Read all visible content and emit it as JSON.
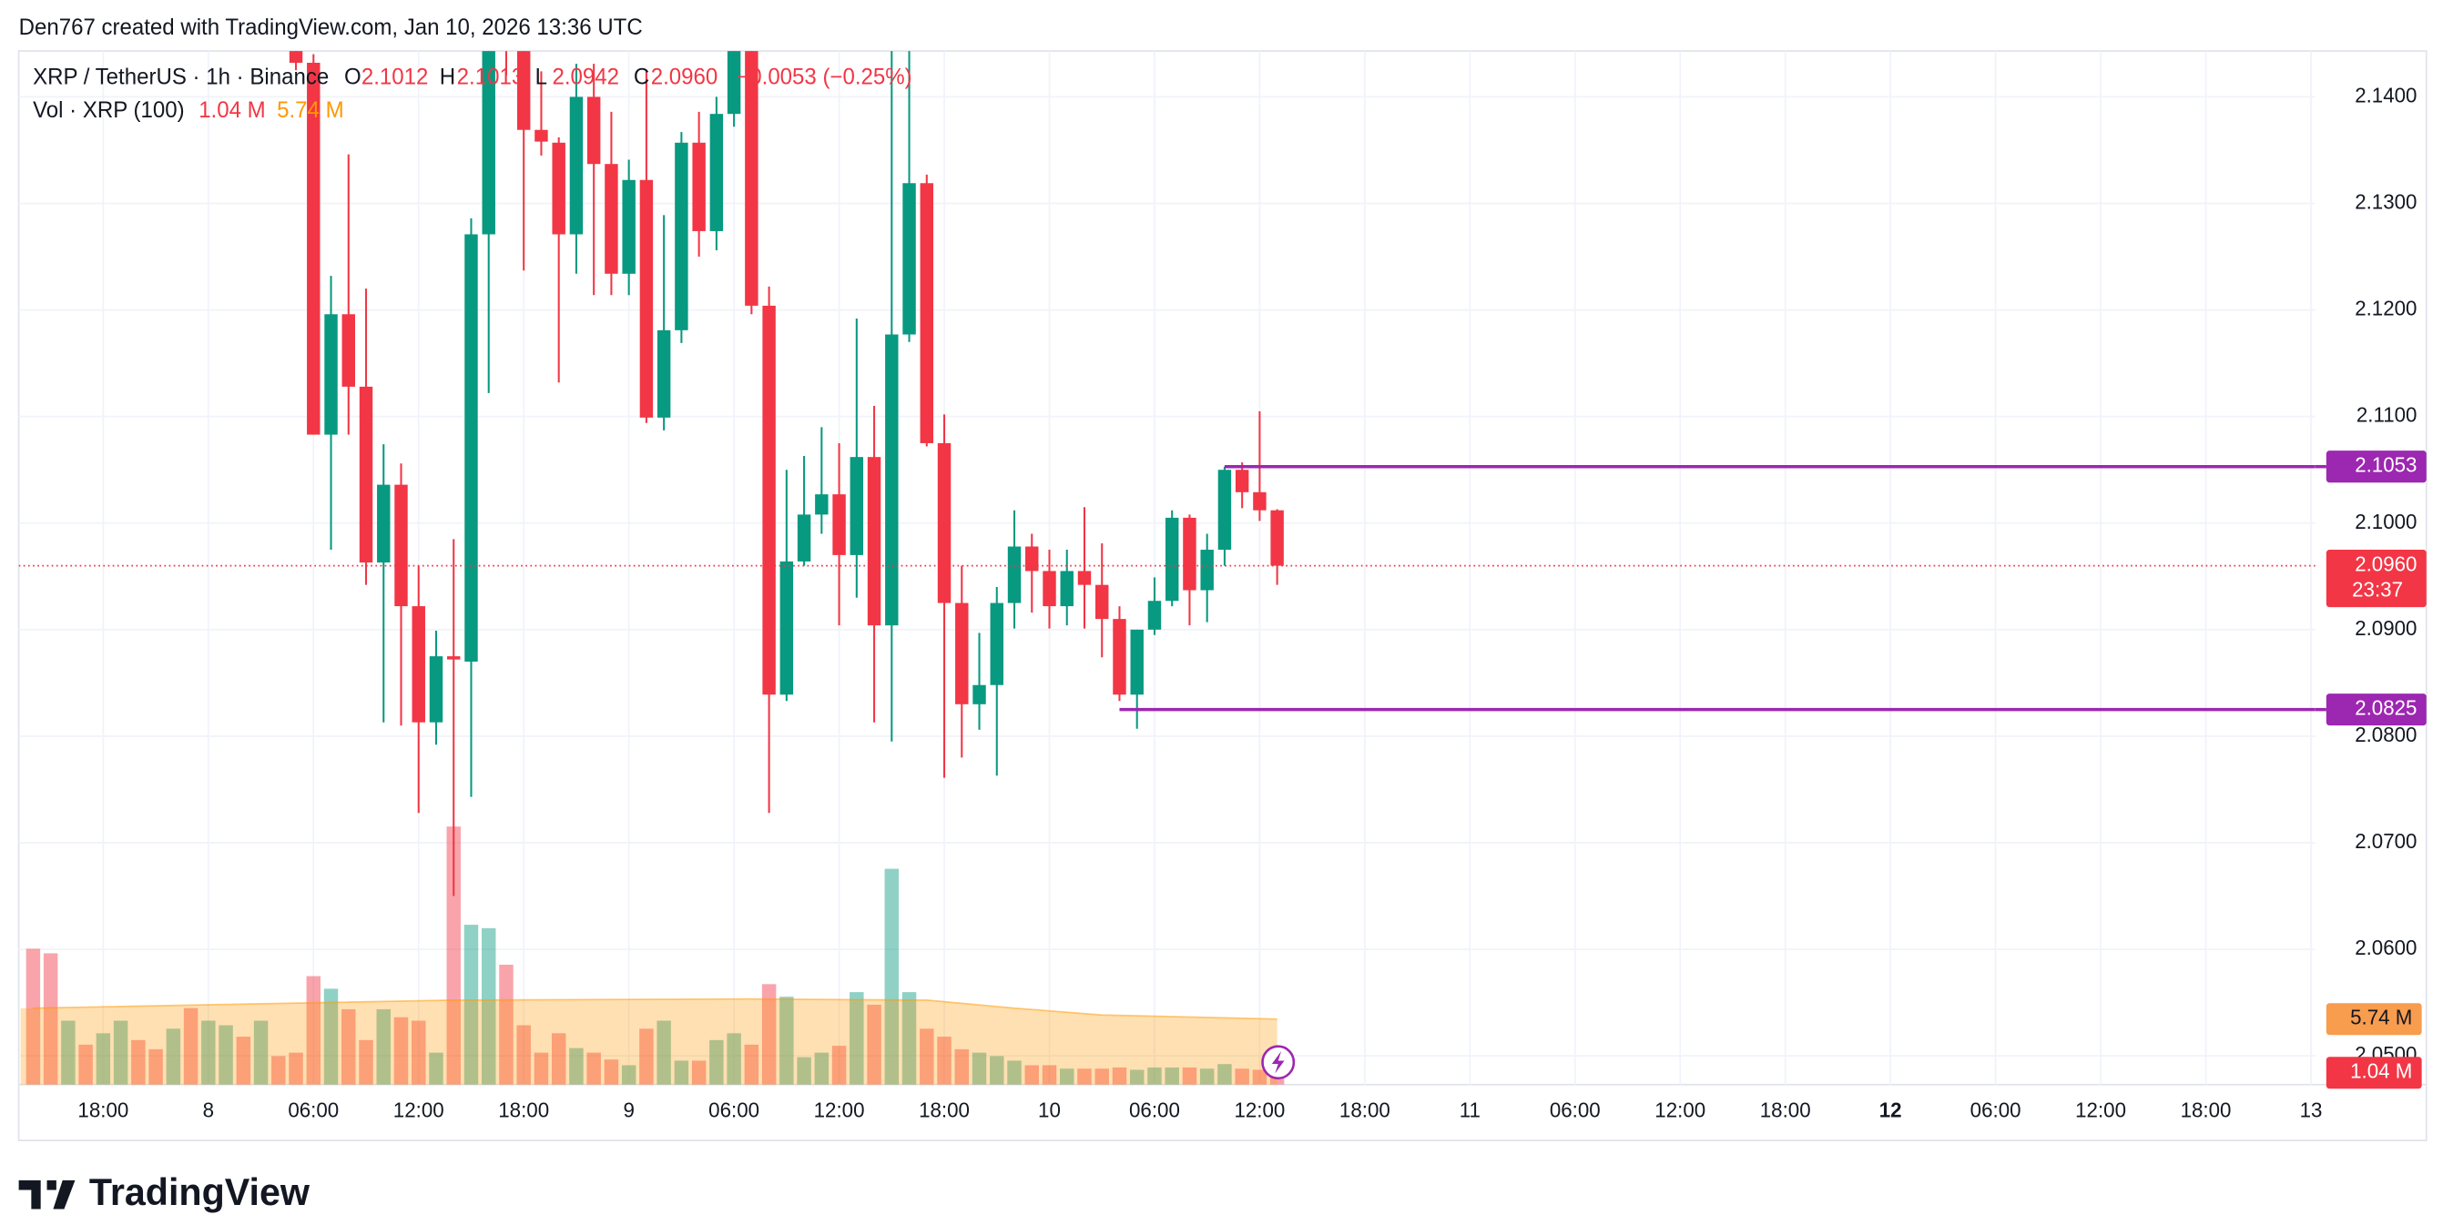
{
  "header": {
    "credit": "Den767 created with TradingView.com, Jan 10, 2026 13:36 UTC"
  },
  "chart_data": {
    "type": "candlestick",
    "title": "XRP / TetherUS · 1h · Binance",
    "ohlc_legend": [
      {
        "label": "O",
        "value": "2.1012"
      },
      {
        "label": "H",
        "value": "2.1013"
      },
      {
        "label": "L",
        "value": "2.0942"
      },
      {
        "label": "C",
        "value": "2.0960"
      }
    ],
    "change": "−0.0053 (−0.25%)",
    "up_color": "#089981",
    "down_color": "#f23645",
    "x": [
      29,
      30,
      31,
      32,
      33,
      34,
      35,
      36,
      37,
      38,
      39,
      40,
      41,
      42,
      43,
      44,
      45,
      46,
      47,
      48,
      49,
      50,
      51,
      52,
      53,
      54,
      55,
      56,
      57,
      58,
      59,
      60,
      61,
      62,
      63,
      64,
      65,
      66,
      67,
      68,
      69,
      70,
      71,
      72,
      73,
      74,
      75,
      76,
      77,
      78,
      79,
      80,
      81,
      82,
      83,
      84,
      85
    ],
    "open": [
      2.15,
      2.1432,
      2.1083,
      2.1196,
      2.1128,
      2.0963,
      2.1036,
      2.0922,
      2.0813,
      2.0875,
      2.087,
      2.1271,
      2.148,
      2.146,
      2.1369,
      2.1357,
      2.1271,
      2.14,
      2.1337,
      2.1234,
      2.1322,
      2.1099,
      2.1181,
      2.1357,
      2.1274,
      2.1384,
      2.145,
      2.1204,
      2.0839,
      2.0964,
      2.1008,
      2.1027,
      2.097,
      2.1062,
      2.0904,
      2.1177,
      2.1319,
      2.1075,
      2.0925,
      2.083,
      2.0848,
      2.0925,
      2.0978,
      2.0955,
      2.0922,
      2.0955,
      2.0942,
      2.091,
      2.0839,
      2.09,
      2.0927,
      2.1005,
      2.0937,
      2.0975,
      2.105,
      2.1029,
      2.1012
    ],
    "high": [
      2.152,
      2.144,
      2.1232,
      2.1346,
      2.122,
      2.1074,
      2.1056,
      2.096,
      2.0899,
      2.0985,
      2.1286,
      2.152,
      2.153,
      2.15,
      2.1424,
      2.1362,
      2.1431,
      2.1431,
      2.1386,
      2.1341,
      2.1424,
      2.1289,
      2.1367,
      2.1386,
      2.14,
      2.147,
      2.146,
      2.1222,
      2.105,
      2.1063,
      2.109,
      2.1075,
      2.1192,
      2.111,
      2.146,
      2.146,
      2.1327,
      2.1102,
      2.096,
      2.0897,
      2.094,
      2.1012,
      2.099,
      2.0975,
      2.0975,
      2.1015,
      2.0981,
      2.0922,
      2.09,
      2.0949,
      2.1012,
      2.1008,
      2.099,
      2.1053,
      2.1057,
      2.1105,
      2.1013
    ],
    "low": [
      2.1425,
      2.1083,
      2.0975,
      2.1083,
      2.0942,
      2.0813,
      2.081,
      2.0728,
      2.0792,
      2.065,
      2.0743,
      2.1122,
      2.142,
      2.1237,
      2.1345,
      2.1132,
      2.1234,
      2.1214,
      2.1214,
      2.1214,
      2.1094,
      2.1087,
      2.1169,
      2.125,
      2.1256,
      2.1372,
      2.1196,
      2.0728,
      2.0833,
      2.096,
      2.099,
      2.0904,
      2.093,
      2.0813,
      2.0795,
      2.117,
      2.1072,
      2.0761,
      2.078,
      2.0806,
      2.0763,
      2.0901,
      2.0916,
      2.0901,
      2.0904,
      2.0901,
      2.0874,
      2.0833,
      2.0807,
      2.0895,
      2.0922,
      2.0904,
      2.0907,
      2.096,
      2.1014,
      2.1002,
      2.0942
    ],
    "close": [
      2.1432,
      2.1083,
      2.1196,
      2.1128,
      2.0963,
      2.1036,
      2.0922,
      2.0813,
      2.0875,
      2.0872,
      2.1271,
      2.148,
      2.146,
      2.1369,
      2.1358,
      2.1271,
      2.14,
      2.1337,
      2.1234,
      2.1322,
      2.1099,
      2.1181,
      2.1357,
      2.1274,
      2.1384,
      2.1445,
      2.1204,
      2.0839,
      2.0964,
      2.1008,
      2.1027,
      2.097,
      2.1062,
      2.0904,
      2.1177,
      2.1319,
      2.1075,
      2.0925,
      2.083,
      2.0848,
      2.0925,
      2.0978,
      2.0955,
      2.0922,
      2.0955,
      2.0942,
      2.091,
      2.0839,
      2.09,
      2.0927,
      2.1005,
      2.0937,
      2.0975,
      2.105,
      2.1029,
      2.1012,
      2.096
    ],
    "xlim": [
      13.18,
      144.25
    ],
    "xticks": [
      {
        "value": 18,
        "label": "18:00"
      },
      {
        "value": 24,
        "label": "8"
      },
      {
        "value": 30,
        "label": "06:00"
      },
      {
        "value": 36,
        "label": "12:00"
      },
      {
        "value": 42,
        "label": "18:00"
      },
      {
        "value": 48,
        "label": "9"
      },
      {
        "value": 54,
        "label": "06:00"
      },
      {
        "value": 60,
        "label": "12:00"
      },
      {
        "value": 66,
        "label": "18:00"
      },
      {
        "value": 72,
        "label": "10"
      },
      {
        "value": 78,
        "label": "06:00"
      },
      {
        "value": 84,
        "label": "12:00"
      },
      {
        "value": 90,
        "label": "18:00"
      },
      {
        "value": 96,
        "label": "11"
      },
      {
        "value": 102,
        "label": "06:00"
      },
      {
        "value": 108,
        "label": "12:00"
      },
      {
        "value": 114,
        "label": "18:00"
      },
      {
        "value": 120,
        "label": "12"
      },
      {
        "value": 126,
        "label": "06:00"
      },
      {
        "value": 132,
        "label": "12:00"
      },
      {
        "value": 138,
        "label": "18:00"
      },
      {
        "value": 144,
        "label": "13"
      }
    ],
    "ylim": [
      2.0473,
      2.1443
    ],
    "yticks": [
      {
        "value": 2.14,
        "label": "2.1400"
      },
      {
        "value": 2.13,
        "label": "2.1300"
      },
      {
        "value": 2.12,
        "label": "2.1200"
      },
      {
        "value": 2.11,
        "label": "2.1100"
      },
      {
        "value": 2.1,
        "label": "2.1000"
      },
      {
        "value": 2.09,
        "label": "2.0900"
      },
      {
        "value": 2.08,
        "label": "2.0800"
      },
      {
        "value": 2.07,
        "label": "2.0700"
      },
      {
        "value": 2.06,
        "label": "2.0600"
      },
      {
        "value": 2.05,
        "label": "2.0500"
      }
    ],
    "grid": true,
    "last_price": {
      "value": 2.096,
      "label": "2.0960",
      "countdown": "23:37"
    },
    "levels": {
      "color": "#9c27b0",
      "items": [
        {
          "value": 2.1053,
          "start": 82
        },
        {
          "value": 2.0825,
          "start": 76
        }
      ]
    },
    "volume": {
      "name": "Vol · XRP (100)",
      "x": [
        14,
        15,
        16,
        17,
        18,
        19,
        20,
        21,
        22,
        23,
        24,
        25,
        26,
        27,
        28,
        29,
        30,
        31,
        32,
        33,
        34,
        35,
        36,
        37,
        38,
        39,
        40,
        41,
        42,
        43,
        44,
        45,
        46,
        47,
        48,
        49,
        50,
        51,
        52,
        53,
        54,
        55,
        56,
        57,
        58,
        59,
        60,
        61,
        62,
        63,
        64,
        65,
        66,
        67,
        68,
        69,
        70,
        71,
        72,
        73,
        74,
        75,
        76,
        77,
        78,
        79,
        80,
        81,
        82,
        83,
        84,
        85
      ],
      "values": [
        11.9,
        11.5,
        5.6,
        3.5,
        4.5,
        5.6,
        3.9,
        3.1,
        4.9,
        6.7,
        5.6,
        5.2,
        4.2,
        5.6,
        2.5,
        2.8,
        9.5,
        8.4,
        6.6,
        3.9,
        6.6,
        5.9,
        5.6,
        2.8,
        22.6,
        14.0,
        13.7,
        10.5,
        5.2,
        2.8,
        4.5,
        3.2,
        2.8,
        2.2,
        1.7,
        4.9,
        5.6,
        2.1,
        2.1,
        3.9,
        4.5,
        3.5,
        8.8,
        7.7,
        2.4,
        2.8,
        3.4,
        8.1,
        7.0,
        18.9,
        8.1,
        4.9,
        4.2,
        3.1,
        2.8,
        2.5,
        2.1,
        1.7,
        1.7,
        1.4,
        1.4,
        1.4,
        1.5,
        1.3,
        1.5,
        1.5,
        1.5,
        1.4,
        1.8,
        1.4,
        1.3,
        1.04
      ],
      "colors": [
        "#f23645",
        "#f23645",
        "#089981",
        "#f23645",
        "#089981",
        "#089981",
        "#f23645",
        "#f23645",
        "#089981",
        "#f23645",
        "#089981",
        "#089981",
        "#f23645",
        "#089981",
        "#f23645",
        "#f23645",
        "#f23645",
        "#089981",
        "#f23645",
        "#f23645",
        "#089981",
        "#f23645",
        "#f23645",
        "#089981",
        "#f23645",
        "#089981",
        "#089981",
        "#f23645",
        "#f23645",
        "#f23645",
        "#f23645",
        "#089981",
        "#f23645",
        "#f23645",
        "#089981",
        "#f23645",
        "#089981",
        "#089981",
        "#f23645",
        "#089981",
        "#089981",
        "#f23645",
        "#f23645",
        "#089981",
        "#089981",
        "#089981",
        "#f23645",
        "#089981",
        "#f23645",
        "#089981",
        "#089981",
        "#f23645",
        "#f23645",
        "#f23645",
        "#089981",
        "#089981",
        "#089981",
        "#f23645",
        "#f23645",
        "#089981",
        "#f23645",
        "#f23645",
        "#f23645",
        "#089981",
        "#089981",
        "#089981",
        "#f23645",
        "#089981",
        "#089981",
        "#f23645",
        "#f23645",
        "#f23645"
      ],
      "last_label": "1.04 M",
      "ma": {
        "color": "#ff9800",
        "x": [
          14,
          38,
          55,
          65,
          70,
          75,
          85
        ],
        "values": [
          6.7,
          7.4,
          7.5,
          7.4,
          6.7,
          6.1,
          5.74
        ],
        "last_label": "5.74 M"
      }
    }
  },
  "footer": {
    "brand": "TradingView"
  }
}
